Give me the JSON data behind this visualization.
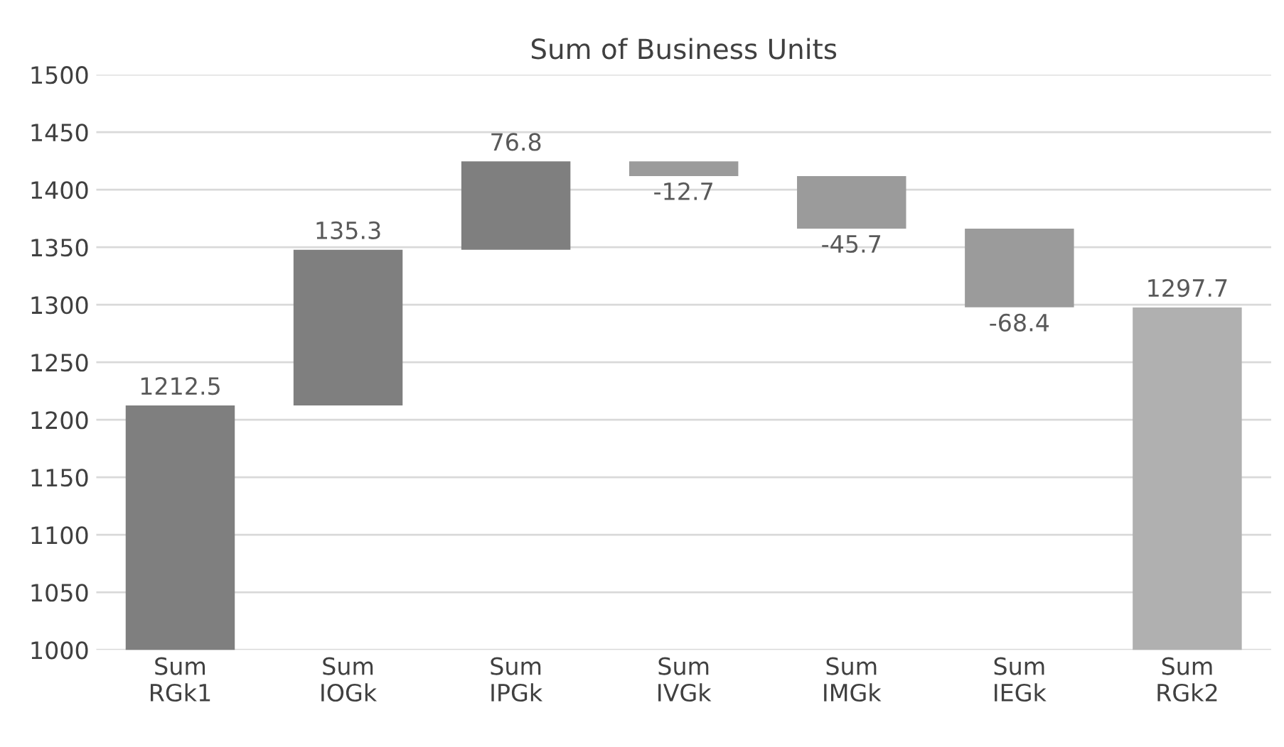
{
  "chart_data": {
    "type": "bar",
    "title": "Sum of Business Units",
    "categories": [
      "Sum RGk1",
      "Sum IOGk",
      "Sum IPGk",
      "Sum IVGk",
      "Sum IMGk",
      "Sum IEGk",
      "Sum RGk2"
    ],
    "values": [
      1212.5,
      135.3,
      76.8,
      -12.7,
      -45.7,
      -68.4,
      1297.7
    ],
    "base": [
      0,
      1212.5,
      1347.8,
      1424.6,
      1411.9,
      1366.2,
      0
    ],
    "colors": [
      "#7f7f7f",
      "#7f7f7f",
      "#7f7f7f",
      "#9b9b9b",
      "#9b9b9b",
      "#9b9b9b",
      "#b0b0b0"
    ],
    "ylim": [
      1000,
      1500
    ],
    "yticks": [
      1000,
      1050,
      1100,
      1150,
      1200,
      1250,
      1300,
      1350,
      1400,
      1450,
      1500
    ],
    "grid": "y",
    "data_labels": true
  }
}
